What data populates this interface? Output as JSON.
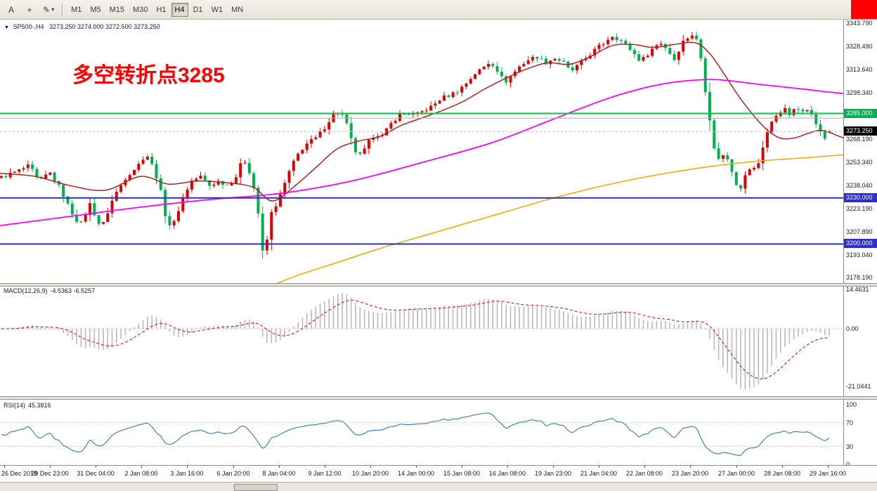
{
  "toolbar": {
    "tools": [
      {
        "id": "cursor",
        "glyph": "A"
      },
      {
        "id": "crosshair",
        "glyph": "+"
      },
      {
        "id": "draw-tools",
        "glyph": "✎",
        "dropdown": "▾"
      }
    ],
    "timeframes": [
      "M1",
      "M5",
      "M15",
      "M30",
      "H1",
      "H4",
      "D1",
      "W1",
      "MN"
    ],
    "active_timeframe": "H4"
  },
  "header": {
    "symbol_period": "SP500-,H4",
    "ohlc": "3273.250 3274.000 3272.500 3273.250"
  },
  "chart": {
    "annotation": {
      "text": "多空转折点3285",
      "color": "#FF0000"
    },
    "price_axis_ticks": [
      3343.79,
      3328.49,
      3313.64,
      3298.34,
      3283.49,
      3268.19,
      3253.34,
      3238.04,
      3223.19,
      3207.89,
      3193.04,
      3178.19
    ],
    "badges": [
      {
        "label": "3285.000",
        "price": 3285.0,
        "color": "#00B050"
      },
      {
        "label": "3273.250",
        "price": 3273.25,
        "color": "#000000"
      },
      {
        "label": "3230.000",
        "price": 3230.0,
        "color": "#2E2EC8"
      },
      {
        "label": "3200.000",
        "price": 3200.0,
        "color": "#2E2EC8"
      }
    ],
    "levels": {
      "green_resistance": 3285.0,
      "gray_line": 3282.0,
      "blue_support_1": 3230.0,
      "blue_support_2": 3200.0,
      "current_price": 3273.25
    }
  },
  "chart_data": {
    "type": "candlestick",
    "symbol": "SP500-",
    "timeframe": "H4",
    "bars": 188,
    "last_candle": {
      "o": 3273.25,
      "h": 3274.0,
      "l": 3272.5,
      "c": 3273.25
    },
    "close_waypoints": [
      [
        0,
        3243
      ],
      [
        28,
        3248
      ],
      [
        42,
        3251
      ],
      [
        56,
        3240
      ],
      [
        70,
        3247
      ],
      [
        86,
        3236
      ],
      [
        100,
        3222
      ],
      [
        114,
        3212
      ],
      [
        128,
        3226
      ],
      [
        144,
        3210
      ],
      [
        162,
        3231
      ],
      [
        180,
        3244
      ],
      [
        196,
        3251
      ],
      [
        208,
        3259
      ],
      [
        220,
        3248
      ],
      [
        230,
        3232
      ],
      [
        238,
        3212
      ],
      [
        248,
        3214
      ],
      [
        258,
        3228
      ],
      [
        272,
        3241
      ],
      [
        286,
        3244
      ],
      [
        298,
        3238
      ],
      [
        312,
        3241
      ],
      [
        324,
        3238
      ],
      [
        336,
        3244
      ],
      [
        346,
        3256
      ],
      [
        356,
        3246
      ],
      [
        366,
        3228
      ],
      [
        372,
        3194
      ],
      [
        378,
        3197
      ],
      [
        386,
        3220
      ],
      [
        396,
        3228
      ],
      [
        404,
        3238
      ],
      [
        414,
        3250
      ],
      [
        426,
        3260
      ],
      [
        438,
        3266
      ],
      [
        450,
        3269
      ],
      [
        462,
        3276
      ],
      [
        474,
        3284
      ],
      [
        484,
        3287
      ],
      [
        494,
        3277
      ],
      [
        504,
        3261
      ],
      [
        514,
        3257
      ],
      [
        524,
        3266
      ],
      [
        534,
        3272
      ],
      [
        544,
        3270
      ],
      [
        556,
        3278
      ],
      [
        568,
        3284
      ],
      [
        580,
        3285
      ],
      [
        592,
        3284
      ],
      [
        604,
        3287
      ],
      [
        616,
        3290
      ],
      [
        628,
        3295
      ],
      [
        640,
        3297
      ],
      [
        652,
        3300
      ],
      [
        664,
        3305
      ],
      [
        676,
        3311
      ],
      [
        688,
        3315
      ],
      [
        698,
        3319
      ],
      [
        708,
        3313
      ],
      [
        718,
        3305
      ],
      [
        728,
        3310
      ],
      [
        740,
        3316
      ],
      [
        752,
        3320
      ],
      [
        764,
        3322
      ],
      [
        776,
        3318
      ],
      [
        788,
        3321
      ],
      [
        800,
        3319
      ],
      [
        812,
        3312
      ],
      [
        824,
        3317
      ],
      [
        836,
        3322
      ],
      [
        848,
        3327
      ],
      [
        860,
        3331
      ],
      [
        870,
        3336
      ],
      [
        882,
        3333
      ],
      [
        892,
        3329
      ],
      [
        902,
        3324
      ],
      [
        912,
        3319
      ],
      [
        922,
        3324
      ],
      [
        932,
        3329
      ],
      [
        942,
        3331
      ],
      [
        952,
        3325
      ],
      [
        960,
        3320
      ],
      [
        970,
        3331
      ],
      [
        980,
        3335
      ],
      [
        988,
        3337
      ],
      [
        996,
        3326
      ],
      [
        1002,
        3305
      ],
      [
        1008,
        3288
      ],
      [
        1016,
        3262
      ],
      [
        1024,
        3255
      ],
      [
        1032,
        3259
      ],
      [
        1040,
        3250
      ],
      [
        1048,
        3239
      ],
      [
        1054,
        3237
      ],
      [
        1062,
        3246
      ],
      [
        1070,
        3251
      ],
      [
        1076,
        3247
      ],
      [
        1084,
        3261
      ],
      [
        1092,
        3273
      ],
      [
        1100,
        3281
      ],
      [
        1108,
        3286
      ],
      [
        1116,
        3288
      ],
      [
        1124,
        3284
      ],
      [
        1132,
        3288
      ],
      [
        1140,
        3287
      ],
      [
        1148,
        3289
      ],
      [
        1156,
        3283
      ],
      [
        1164,
        3276
      ],
      [
        1172,
        3268
      ],
      [
        1180,
        3271
      ],
      [
        1188,
        3273.2
      ]
    ],
    "moving_averages": [
      {
        "name": "ma-fast",
        "color": "#B22222",
        "width": 1.5,
        "points": [
          [
            0,
            3246
          ],
          [
            50,
            3244
          ],
          [
            100,
            3238
          ],
          [
            150,
            3235
          ],
          [
            200,
            3244
          ],
          [
            240,
            3239
          ],
          [
            280,
            3241
          ],
          [
            320,
            3240
          ],
          [
            360,
            3237
          ],
          [
            388,
            3228
          ],
          [
            420,
            3238
          ],
          [
            450,
            3250
          ],
          [
            480,
            3262
          ],
          [
            510,
            3267
          ],
          [
            540,
            3270
          ],
          [
            570,
            3277
          ],
          [
            600,
            3282
          ],
          [
            630,
            3287
          ],
          [
            660,
            3293
          ],
          [
            690,
            3301
          ],
          [
            720,
            3308
          ],
          [
            750,
            3314
          ],
          [
            780,
            3318
          ],
          [
            810,
            3317
          ],
          [
            840,
            3322
          ],
          [
            870,
            3329
          ],
          [
            900,
            3330
          ],
          [
            930,
            3328
          ],
          [
            960,
            3330
          ],
          [
            990,
            3331
          ],
          [
            1010,
            3324
          ],
          [
            1030,
            3311
          ],
          [
            1050,
            3297
          ],
          [
            1070,
            3285
          ],
          [
            1090,
            3275
          ],
          [
            1110,
            3269
          ],
          [
            1130,
            3269
          ],
          [
            1150,
            3272
          ],
          [
            1170,
            3274
          ],
          [
            1195,
            3270
          ],
          [
            1225,
            3265
          ],
          [
            1248,
            3262
          ]
        ]
      },
      {
        "name": "ma-mid",
        "color": "#FF00FF",
        "width": 1.8,
        "points": [
          [
            0,
            3212
          ],
          [
            100,
            3218
          ],
          [
            200,
            3224
          ],
          [
            300,
            3229
          ],
          [
            400,
            3233
          ],
          [
            500,
            3241
          ],
          [
            600,
            3253
          ],
          [
            700,
            3266
          ],
          [
            780,
            3280
          ],
          [
            860,
            3294
          ],
          [
            920,
            3302
          ],
          [
            970,
            3306
          ],
          [
            1020,
            3307
          ],
          [
            1080,
            3304
          ],
          [
            1140,
            3301
          ],
          [
            1200,
            3298
          ],
          [
            1248,
            3297
          ]
        ]
      },
      {
        "name": "ma-slow",
        "color": "#FFA500",
        "width": 1.5,
        "points": [
          [
            378,
            3171
          ],
          [
            420,
            3179
          ],
          [
            480,
            3188
          ],
          [
            540,
            3197
          ],
          [
            600,
            3205
          ],
          [
            660,
            3213
          ],
          [
            720,
            3221
          ],
          [
            780,
            3229
          ],
          [
            840,
            3236
          ],
          [
            900,
            3242
          ],
          [
            960,
            3247
          ],
          [
            1020,
            3251
          ],
          [
            1080,
            3254
          ],
          [
            1140,
            3256
          ],
          [
            1200,
            3258
          ],
          [
            1248,
            3260
          ]
        ]
      }
    ]
  },
  "macd": {
    "name": "MACD(12,26,9)",
    "values": "-4.5363 -6.5257",
    "axis": [
      {
        "label": "14.4631",
        "v": 14.4631
      },
      {
        "label": "0.00",
        "v": 0
      },
      {
        "label": "-21.0441",
        "v": -21.0441
      }
    ],
    "histogram_color": "#B9B9B9",
    "signal_color": "#E00000"
  },
  "rsi": {
    "name": "RSI(14)",
    "value": "45.3816",
    "axis": [
      {
        "label": "100",
        "v": 100
      },
      {
        "label": "70",
        "v": 70
      },
      {
        "label": "30",
        "v": 30
      },
      {
        "label": "0",
        "v": 0
      }
    ],
    "levels": [
      70,
      30
    ],
    "line_color": "#4682B4"
  },
  "time_axis": [
    "26 Dec 2019",
    "29 Dec 23:00",
    "31 Dec 04:00",
    "2 Jan 08:00",
    "3 Jan 16:00",
    "6 Jan 20:00",
    "8 Jan 04:00",
    "9 Jan 12:00",
    "10 Jan 20:00",
    "14 Jan 00:00",
    "15 Jan 08:00",
    "16 Jan 08:00",
    "19 Jan 23:00",
    "21 Jan 04:00",
    "22 Jan 08:00",
    "23 Jan 20:00",
    "27 Jan 00:00",
    "28 Jan 08:00",
    "29 Jan 16:00"
  ],
  "colors": {
    "bull_candle": "#E00000",
    "bear_candle": "#00B050",
    "level_green": "#00C24B",
    "level_blue": "#2E2EC8",
    "gray_line": "#ABABAB",
    "current_dash": "#BDBDBD"
  }
}
